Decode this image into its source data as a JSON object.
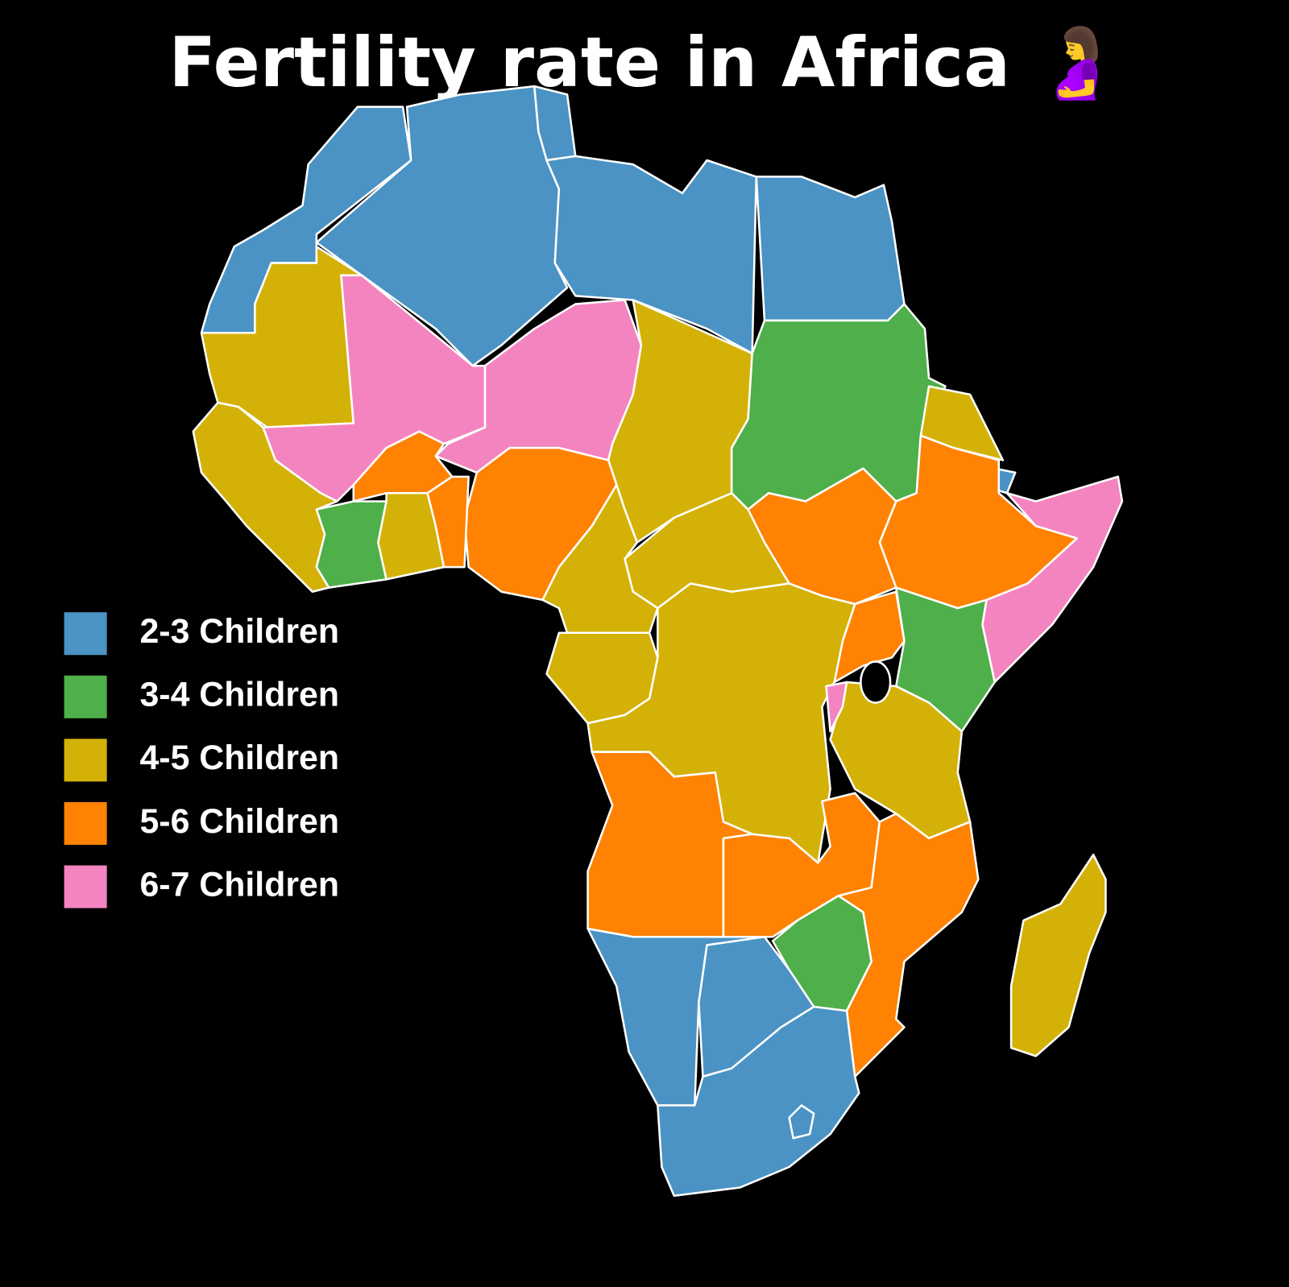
{
  "title": "Fertility rate in Africa 🤰",
  "legend": [
    {
      "label": "2-3 Children",
      "color": "#4a93c4"
    },
    {
      "label": "3-4 Children",
      "color": "#4faf4a"
    },
    {
      "label": "4-5 Children",
      "color": "#d4b106"
    },
    {
      "label": "5-6 Children",
      "color": "#ff8202"
    },
    {
      "label": "6-7 Children",
      "color": "#f484c0"
    }
  ]
}
